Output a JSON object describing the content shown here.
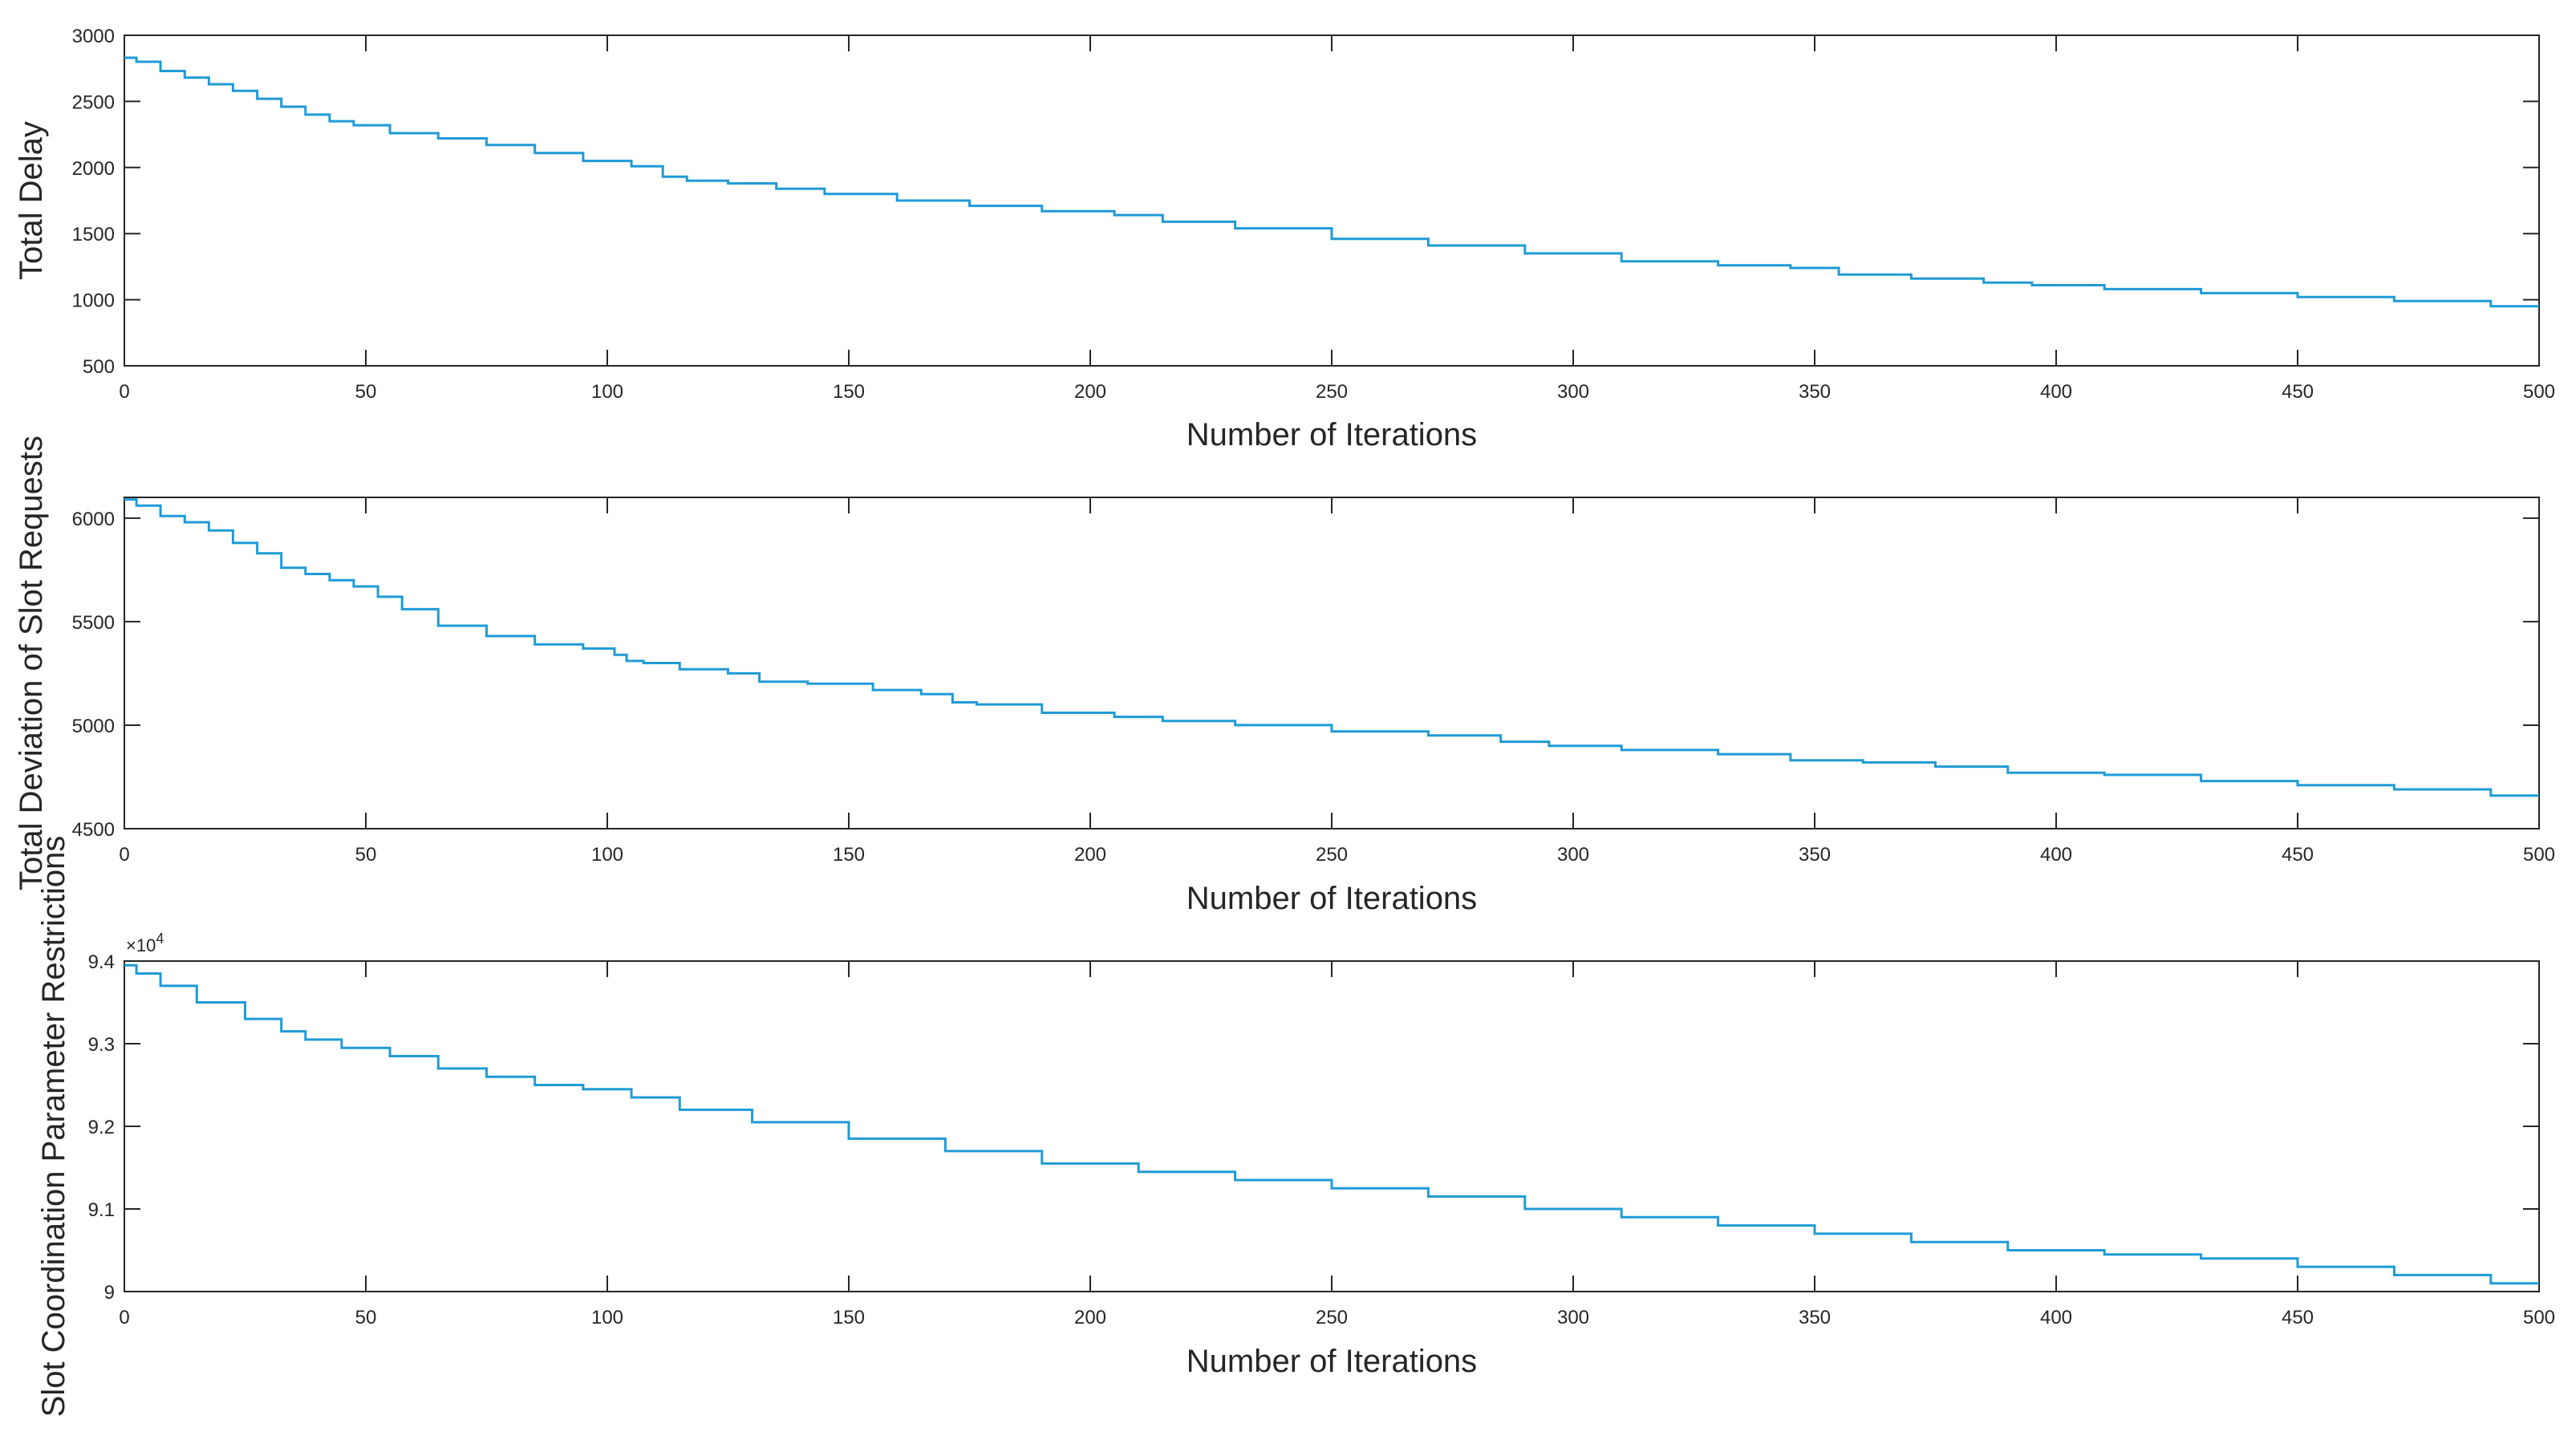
{
  "chart_data": [
    {
      "type": "line",
      "xlabel": "Number of Iterations",
      "ylabel": "Total Delay",
      "xlim": [
        0,
        500
      ],
      "ylim": [
        500,
        3000
      ],
      "xticks": [
        "0",
        "50",
        "100",
        "150",
        "200",
        "250",
        "300",
        "350",
        "400",
        "450",
        "500"
      ],
      "yticks": [
        "500",
        "1000",
        "1500",
        "2000",
        "2500",
        "3000"
      ],
      "grid": false,
      "series": [
        {
          "color": "#1f9bd6",
          "x": [
            0,
            5,
            10,
            15,
            20,
            25,
            30,
            35,
            40,
            45,
            50,
            60,
            70,
            80,
            90,
            100,
            110,
            113,
            120,
            130,
            140,
            150,
            170,
            180,
            200,
            210,
            220,
            240,
            260,
            280,
            300,
            320,
            340,
            350,
            360,
            380,
            390,
            400,
            420,
            440,
            460,
            480,
            500
          ],
          "y": [
            2830,
            2800,
            2730,
            2680,
            2630,
            2580,
            2520,
            2460,
            2400,
            2350,
            2320,
            2260,
            2220,
            2170,
            2110,
            2050,
            2010,
            1930,
            1900,
            1880,
            1840,
            1800,
            1750,
            1710,
            1670,
            1640,
            1590,
            1540,
            1460,
            1410,
            1350,
            1290,
            1260,
            1240,
            1190,
            1160,
            1130,
            1110,
            1080,
            1050,
            1020,
            990,
            950
          ]
        }
      ]
    },
    {
      "type": "line",
      "xlabel": "Number of Iterations",
      "ylabel": "Total Deviation of Slot Requests",
      "xlim": [
        0,
        500
      ],
      "ylim": [
        4500,
        6100
      ],
      "xticks": [
        "0",
        "50",
        "100",
        "150",
        "200",
        "250",
        "300",
        "350",
        "400",
        "450",
        "500"
      ],
      "yticks": [
        "4500",
        "5000",
        "5500",
        "6000"
      ],
      "grid": false,
      "series": [
        {
          "color": "#1f9bd6",
          "x": [
            0,
            5,
            10,
            15,
            20,
            25,
            30,
            35,
            40,
            45,
            50,
            55,
            60,
            70,
            80,
            90,
            100,
            103,
            105,
            110,
            120,
            130,
            133,
            150,
            160,
            170,
            173,
            180,
            200,
            210,
            220,
            240,
            260,
            280,
            290,
            300,
            320,
            340,
            350,
            370,
            380,
            400,
            420,
            440,
            460,
            480,
            500
          ],
          "y": [
            6090,
            6060,
            6010,
            5980,
            5940,
            5880,
            5830,
            5760,
            5730,
            5700,
            5670,
            5620,
            5560,
            5480,
            5430,
            5390,
            5370,
            5340,
            5310,
            5300,
            5270,
            5250,
            5210,
            5200,
            5170,
            5150,
            5110,
            5100,
            5060,
            5040,
            5020,
            5000,
            4970,
            4950,
            4920,
            4900,
            4880,
            4860,
            4830,
            4820,
            4800,
            4770,
            4760,
            4730,
            4710,
            4690,
            4660
          ]
        }
      ]
    },
    {
      "type": "line",
      "xlabel": "Number of Iterations",
      "ylabel": "Slot Coordination Parameter Restrictions",
      "y_exponent": "×10",
      "y_exponent_power": "4",
      "xlim": [
        0,
        500
      ],
      "ylim": [
        9.0,
        9.4
      ],
      "xticks": [
        "0",
        "50",
        "100",
        "150",
        "200",
        "250",
        "300",
        "350",
        "400",
        "450",
        "500"
      ],
      "yticks": [
        "9",
        "9.1",
        "9.2",
        "9.3",
        "9.4"
      ],
      "grid": false,
      "series": [
        {
          "color": "#1f9bd6",
          "x": [
            0,
            5,
            10,
            20,
            30,
            35,
            40,
            50,
            60,
            70,
            80,
            90,
            100,
            110,
            120,
            140,
            160,
            180,
            200,
            220,
            240,
            260,
            280,
            300,
            320,
            340,
            360,
            380,
            400,
            420,
            440,
            460,
            480,
            500
          ],
          "y": [
            9.395,
            9.385,
            9.37,
            9.35,
            9.33,
            9.315,
            9.305,
            9.295,
            9.285,
            9.27,
            9.26,
            9.25,
            9.245,
            9.235,
            9.22,
            9.205,
            9.185,
            9.17,
            9.155,
            9.145,
            9.135,
            9.125,
            9.115,
            9.1,
            9.09,
            9.08,
            9.07,
            9.06,
            9.05,
            9.045,
            9.04,
            9.03,
            9.02,
            9.01
          ]
        }
      ]
    }
  ]
}
